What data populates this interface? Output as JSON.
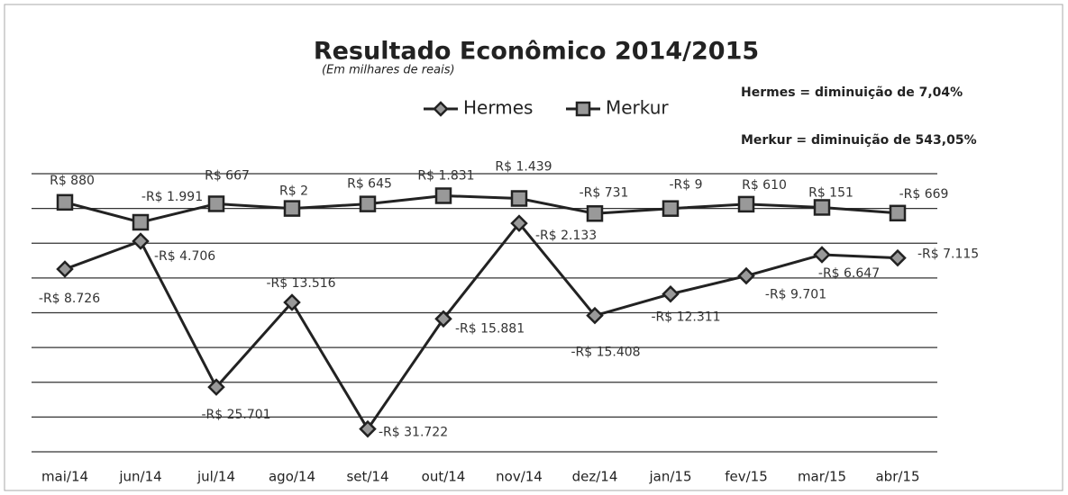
{
  "chart_data": {
    "type": "line",
    "title": "Resultado Econômico 2014/2015",
    "subtitle": "(Em milhares de reais)",
    "annotations": [
      "Hermes = diminuição de 7,04%",
      "Merkur = diminuição de 543,05%"
    ],
    "categories": [
      "mai/14",
      "jun/14",
      "jul/14",
      "ago/14",
      "set/14",
      "out/14",
      "nov/14",
      "dez/14",
      "jan/15",
      "fev/15",
      "mar/15",
      "abr/15"
    ],
    "series": [
      {
        "name": "Hermes",
        "color": "#222222",
        "marker": "diamond",
        "values": [
          -8726,
          -4706,
          -25701,
          -13516,
          -31722,
          -15881,
          -2133,
          -15408,
          -12311,
          -9701,
          -6647,
          -7115
        ],
        "value_labels": [
          "-R$ 8.726",
          "-R$ 4.706",
          "-R$ 25.701",
          "-R$ 13.516",
          "-R$ 31.722",
          "-R$ 15.881",
          "-R$ 2.133",
          "-R$ 15.408",
          "-R$ 12.311",
          "-R$ 9.701",
          "-R$ 6.647",
          "-R$ 7.115"
        ]
      },
      {
        "name": "Merkur",
        "color": "#222222",
        "marker": "square",
        "values": [
          880,
          -1991,
          667,
          2,
          645,
          1831,
          1439,
          -731,
          -9,
          610,
          151,
          -669
        ],
        "value_labels": [
          "R$ 880",
          "-R$ 1.991",
          "R$ 667",
          "R$ 2",
          "R$ 645",
          "R$ 1.831",
          "R$ 1.439",
          "-R$ 731",
          "-R$ 9",
          "R$ 610",
          "R$ 151",
          "-R$ 669"
        ]
      }
    ],
    "ylim": [
      -35000,
      5000
    ],
    "yticks": [
      -35000,
      -30000,
      -25000,
      -20000,
      -15000,
      -10000,
      -5000,
      0,
      5000
    ],
    "grid": true,
    "legend": "top"
  }
}
